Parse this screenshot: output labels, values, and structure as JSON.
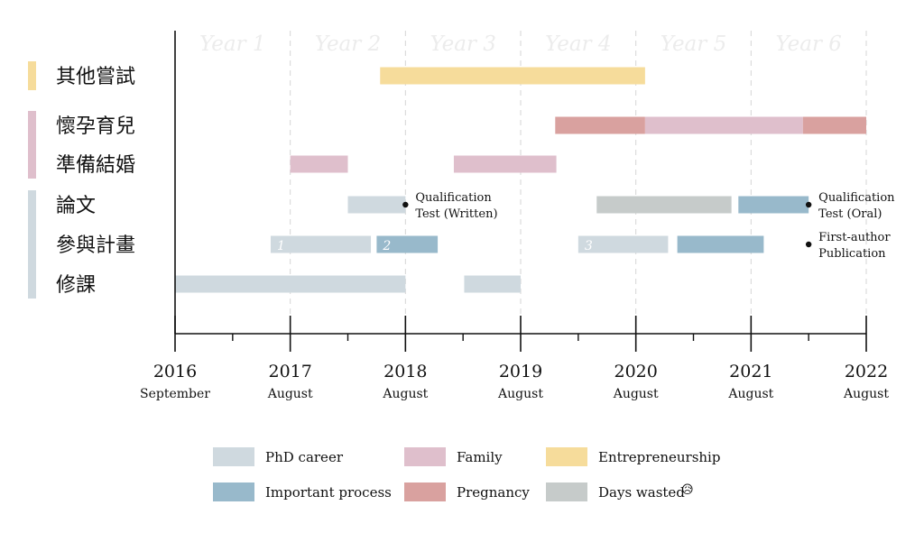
{
  "chart_data": {
    "type": "timeline",
    "title": "",
    "x_range": [
      2016.67,
      2022.67
    ],
    "year_headers": [
      "Year 1",
      "Year 2",
      "Year 3",
      "Year 4",
      "Year 5",
      "Year 6"
    ],
    "ticks": [
      {
        "x": 2016.67,
        "year": "2016",
        "month": "September"
      },
      {
        "x": 2017.67,
        "year": "2017",
        "month": "August"
      },
      {
        "x": 2018.67,
        "year": "2018",
        "month": "August"
      },
      {
        "x": 2019.67,
        "year": "2019",
        "month": "August"
      },
      {
        "x": 2020.67,
        "year": "2020",
        "month": "August"
      },
      {
        "x": 2021.67,
        "year": "2021",
        "month": "August"
      },
      {
        "x": 2022.67,
        "year": "2022",
        "month": "August"
      }
    ],
    "rows": [
      {
        "key": "other",
        "label": "其他嘗試",
        "group": "entrepreneurship"
      },
      {
        "key": "pregnancy",
        "label": "懷孕育兒",
        "group": "family"
      },
      {
        "key": "marriage",
        "label": "準備結婚",
        "group": "family"
      },
      {
        "key": "thesis",
        "label": "論文",
        "group": "phd"
      },
      {
        "key": "projects",
        "label": "參與計畫",
        "group": "phd"
      },
      {
        "key": "courses",
        "label": "修課",
        "group": "phd"
      }
    ],
    "groups": [
      {
        "key": "entrepreneurship",
        "color": "#f6dc9b"
      },
      {
        "key": "family",
        "color": "#dfbfcc"
      },
      {
        "key": "phd",
        "color": "#cfd9df"
      }
    ],
    "bars": [
      {
        "row": "other",
        "start": 2018.45,
        "end": 2020.75,
        "category": "entrepreneurship"
      },
      {
        "row": "pregnancy",
        "start": 2019.97,
        "end": 2020.75,
        "category": "pregnancy"
      },
      {
        "row": "pregnancy",
        "start": 2020.75,
        "end": 2022.12,
        "category": "family"
      },
      {
        "row": "pregnancy",
        "start": 2022.12,
        "end": 2022.67,
        "category": "pregnancy"
      },
      {
        "row": "marriage",
        "start": 2017.67,
        "end": 2018.17,
        "category": "family"
      },
      {
        "row": "marriage",
        "start": 2019.09,
        "end": 2019.98,
        "category": "family"
      },
      {
        "row": "thesis",
        "start": 2018.17,
        "end": 2018.67,
        "category": "phd"
      },
      {
        "row": "thesis",
        "start": 2020.33,
        "end": 2021.5,
        "category": "wasted"
      },
      {
        "row": "thesis",
        "start": 2021.56,
        "end": 2022.17,
        "category": "important"
      },
      {
        "row": "projects",
        "start": 2017.5,
        "end": 2018.37,
        "category": "phd",
        "label": "1"
      },
      {
        "row": "projects",
        "start": 2018.42,
        "end": 2018.95,
        "category": "important",
        "label": "2"
      },
      {
        "row": "projects",
        "start": 2020.17,
        "end": 2020.95,
        "category": "phd",
        "label": "3"
      },
      {
        "row": "projects",
        "start": 2021.03,
        "end": 2021.78,
        "category": "important"
      },
      {
        "row": "courses",
        "start": 2016.67,
        "end": 2018.67,
        "category": "phd"
      },
      {
        "row": "courses",
        "start": 2019.18,
        "end": 2019.67,
        "category": "phd"
      }
    ],
    "annotations": [
      {
        "row": "thesis",
        "x": 2018.67,
        "lines": [
          "Qualification",
          "Test (Written)"
        ]
      },
      {
        "row": "thesis",
        "x": 2022.17,
        "lines": [
          "Qualification",
          "Test (Oral)"
        ]
      },
      {
        "row": "projects",
        "x": 2022.17,
        "lines": [
          "First-author",
          "Publication"
        ]
      }
    ],
    "legend": [
      {
        "category": "phd",
        "label": "PhD career",
        "color": "#cfd9df"
      },
      {
        "category": "family",
        "label": "Family",
        "color": "#dfbfcc"
      },
      {
        "category": "entrepreneurship",
        "label": "Entrepreneurship",
        "color": "#f6dc9b"
      },
      {
        "category": "important",
        "label": "Important process",
        "color": "#98b9cb"
      },
      {
        "category": "pregnancy",
        "label": "Pregnancy",
        "color": "#d9a19f"
      },
      {
        "category": "wasted",
        "label": "Days wasted",
        "color": "#c6cbca",
        "emoji": "😥"
      }
    ],
    "legend_placement": "bottom",
    "grid": true,
    "colors": {
      "phd": "#cfd9df",
      "family": "#dfbfcc",
      "entrepreneurship": "#f6dc9b",
      "important": "#98b9cb",
      "pregnancy": "#d9a19f",
      "wasted": "#c6cbca",
      "header_text": "#ececec",
      "axis": "#111111",
      "grid": "#d6d6d6"
    }
  }
}
